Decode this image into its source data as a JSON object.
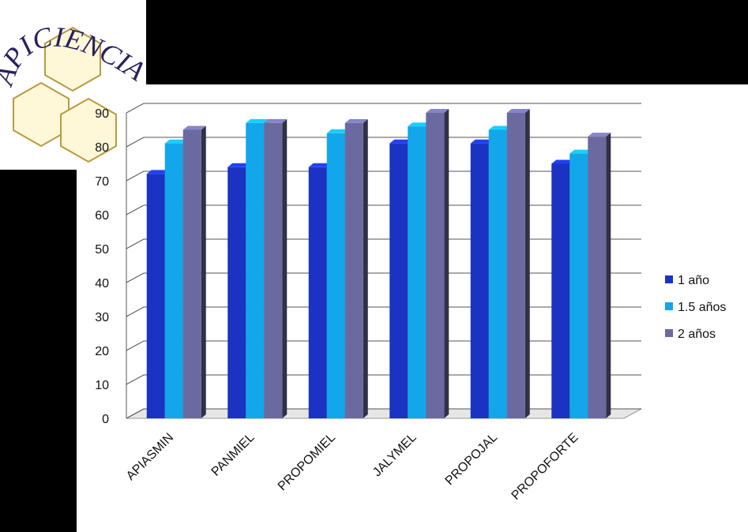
{
  "logo": {
    "text": "APICIENCIA"
  },
  "chart_data": {
    "type": "bar3d",
    "categories": [
      "APIASMIN",
      "PANMIEL",
      "PROPOMIEL",
      "JALYMEL",
      "PROPOJAL",
      "PROPOFORTE"
    ],
    "series": [
      {
        "name": "1 año",
        "color": "#1a33c2",
        "values": [
          72,
          74,
          74,
          81,
          81,
          75
        ]
      },
      {
        "name": "1.5 años",
        "color": "#12a6ea",
        "values": [
          81,
          87,
          84,
          86,
          85,
          78
        ]
      },
      {
        "name": "2 años",
        "color": "#6a6aa0",
        "values": [
          85,
          87,
          87,
          90,
          90,
          83
        ]
      }
    ],
    "ylim": [
      0,
      90
    ],
    "yticks": [
      0,
      10,
      20,
      30,
      40,
      50,
      60,
      70,
      80,
      90
    ],
    "grid": true,
    "legend": "right"
  }
}
